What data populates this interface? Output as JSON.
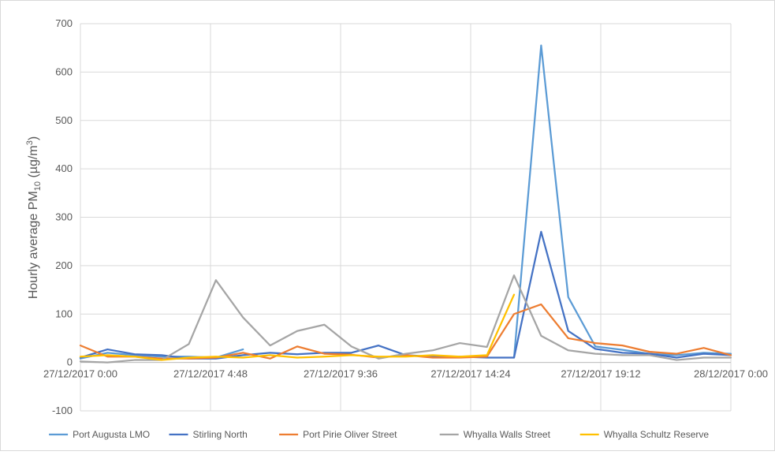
{
  "chart_data": {
    "type": "line",
    "ylabel_pre": "Hourly average PM",
    "ylabel_sub": "10",
    "ylabel_mid": " (µg/m",
    "ylabel_sup": "3",
    "ylabel_post": ")",
    "ylim": [
      -100,
      700
    ],
    "yticks": [
      -100,
      0,
      100,
      200,
      300,
      400,
      500,
      600,
      700
    ],
    "xlim": [
      0,
      24
    ],
    "xticks": [
      {
        "x": 0,
        "label": "27/12/2017 0:00"
      },
      {
        "x": 4.8,
        "label": "27/12/2017 4:48"
      },
      {
        "x": 9.6,
        "label": "27/12/2017 9:36"
      },
      {
        "x": 14.4,
        "label": "27/12/2017 14:24"
      },
      {
        "x": 19.2,
        "label": "27/12/2017 19:12"
      },
      {
        "x": 24,
        "label": "28/12/2017 0:00"
      }
    ],
    "grid": true,
    "legend_position": "bottom",
    "series": [
      {
        "name": "Port Augusta LMO",
        "color": "#5B9BD5",
        "x": [
          0,
          1,
          2,
          3,
          4,
          5,
          6,
          7,
          8,
          9,
          10,
          11,
          12,
          13,
          14,
          15,
          16,
          17,
          18,
          19,
          20,
          21,
          22,
          23,
          24
        ],
        "y": [
          8,
          20,
          15,
          12,
          12,
          10,
          27,
          null,
          null,
          null,
          null,
          null,
          null,
          null,
          null,
          null,
          10,
          655,
          135,
          33,
          26,
          18,
          15,
          20,
          18
        ]
      },
      {
        "name": "Stirling North",
        "color": "#4472C4",
        "x": [
          0,
          1,
          2,
          3,
          4,
          5,
          6,
          7,
          8,
          9,
          10,
          11,
          12,
          13,
          14,
          15,
          16,
          17,
          18,
          19,
          20,
          21,
          22,
          23,
          24
        ],
        "y": [
          10,
          27,
          17,
          15,
          8,
          8,
          15,
          20,
          17,
          20,
          20,
          35,
          15,
          12,
          12,
          10,
          10,
          270,
          65,
          28,
          20,
          18,
          10,
          18,
          15
        ]
      },
      {
        "name": "Port Pirie Oliver Street",
        "color": "#ED7D31",
        "x": [
          0,
          1,
          2,
          3,
          4,
          5,
          6,
          7,
          8,
          9,
          10,
          11,
          12,
          13,
          14,
          15,
          16,
          17,
          18,
          19,
          20,
          21,
          22,
          23,
          24
        ],
        "y": [
          35,
          12,
          12,
          8,
          8,
          10,
          20,
          8,
          33,
          18,
          16,
          10,
          15,
          10,
          10,
          12,
          100,
          120,
          50,
          40,
          35,
          22,
          18,
          30,
          15
        ]
      },
      {
        "name": "Whyalla Walls Street",
        "color": "#A5A5A5",
        "x": [
          0,
          1,
          2,
          3,
          4,
          5,
          6,
          7,
          8,
          9,
          10,
          11,
          12,
          13,
          14,
          15,
          16,
          17,
          18,
          19,
          20,
          21,
          22,
          23,
          24
        ],
        "y": [
          2,
          0,
          5,
          5,
          38,
          170,
          93,
          35,
          65,
          78,
          33,
          8,
          18,
          25,
          40,
          32,
          180,
          55,
          25,
          18,
          15,
          15,
          5,
          10,
          10
        ]
      },
      {
        "name": "Whyalla Schultz Reserve",
        "color": "#FFC000",
        "x": [
          0,
          1,
          2,
          3,
          4,
          5,
          6,
          7,
          8,
          9,
          10,
          11,
          12,
          13,
          14,
          15,
          16
        ],
        "y": [
          12,
          15,
          12,
          5,
          10,
          12,
          10,
          15,
          10,
          12,
          15,
          12,
          12,
          15,
          12,
          15,
          140
        ]
      }
    ]
  }
}
